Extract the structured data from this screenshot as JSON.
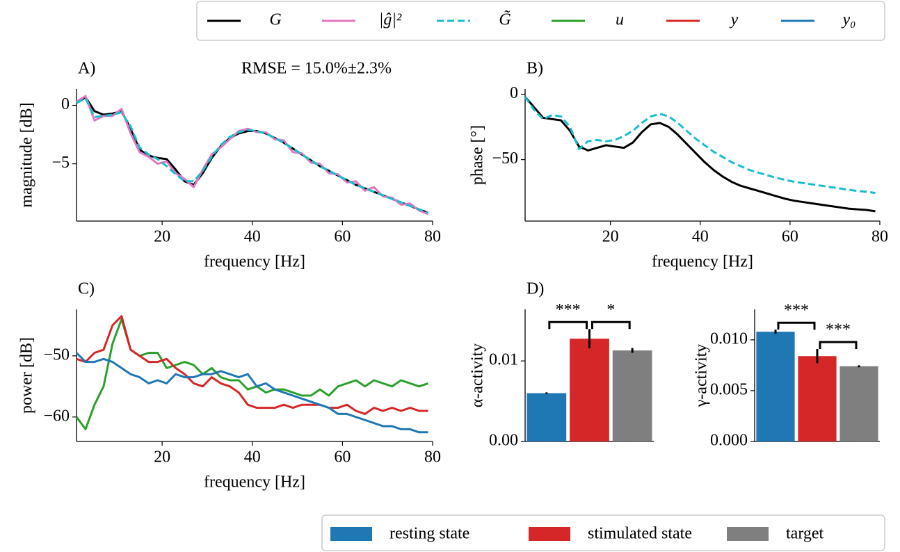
{
  "chart_data": [
    {
      "type": "line",
      "panel_label": "A)",
      "annotation": "RMSE = 15.0%±2.3%",
      "xlabel": "frequency [Hz]",
      "ylabel": "magnitude [dB]",
      "x": [
        1,
        3,
        5,
        7,
        9,
        11,
        13,
        15,
        17,
        19,
        21,
        23,
        25,
        27,
        29,
        31,
        33,
        35,
        37,
        39,
        41,
        43,
        45,
        47,
        49,
        51,
        53,
        55,
        57,
        59,
        61,
        63,
        65,
        67,
        69,
        71,
        73,
        75,
        77,
        79
      ],
      "xlim": [
        1,
        80
      ],
      "ylim": [
        -9.9,
        1.4
      ],
      "xticks": [
        20,
        40,
        60,
        80
      ],
      "yticks": [
        0,
        {
          "value": -5,
          "label": "−5"
        }
      ],
      "series": [
        {
          "name": "G",
          "color": "#000000",
          "dash": "solid",
          "values": [
            0.2,
            0.7,
            -0.5,
            -0.8,
            -0.7,
            -0.5,
            -2,
            -3.8,
            -4.3,
            -4.5,
            -4.6,
            -5.5,
            -6.5,
            -6.8,
            -5.8,
            -4.5,
            -3.5,
            -2.8,
            -2.4,
            -2.2,
            -2.2,
            -2.4,
            -2.8,
            -3.2,
            -3.7,
            -4.2,
            -4.7,
            -5.2,
            -5.6,
            -6.0,
            -6.4,
            -6.8,
            -7.1,
            -7.4,
            -7.7,
            -8.0,
            -8.3,
            -8.6,
            -8.9,
            -9.2
          ]
        },
        {
          "name": "|ĝ|²",
          "color": "#e377c2",
          "dash": "solid",
          "values": [
            0.3,
            0.8,
            -1.3,
            -0.9,
            -0.9,
            -0.3,
            -2.4,
            -4.0,
            -4.4,
            -5.0,
            -4.8,
            -5.8,
            -6.3,
            -7.0,
            -5.5,
            -4.2,
            -3.6,
            -2.9,
            -2.2,
            -2.0,
            -2.3,
            -2.3,
            -2.9,
            -3.0,
            -4.0,
            -4.1,
            -4.9,
            -5.0,
            -5.8,
            -5.9,
            -6.6,
            -6.5,
            -7.3,
            -7.0,
            -7.8,
            -7.9,
            -8.5,
            -8.4,
            -9.0,
            -9.3
          ]
        },
        {
          "name": "G̃",
          "color": "#17becf",
          "dash": "dashed",
          "values": [
            0.2,
            0.6,
            -1.0,
            -0.9,
            -0.8,
            -0.6,
            -1.8,
            -3.6,
            -4.2,
            -4.6,
            -5.2,
            -5.9,
            -6.5,
            -6.5,
            -5.6,
            -4.4,
            -3.4,
            -2.7,
            -2.3,
            -2.1,
            -2.2,
            -2.4,
            -2.8,
            -3.2,
            -3.7,
            -4.2,
            -4.7,
            -5.2,
            -5.6,
            -6.0,
            -6.4,
            -6.8,
            -7.1,
            -7.4,
            -7.7,
            -8.0,
            -8.3,
            -8.6,
            -8.9,
            -9.2
          ]
        }
      ]
    },
    {
      "type": "line",
      "panel_label": "B)",
      "xlabel": "frequency [Hz]",
      "ylabel": "phase [°]",
      "x": [
        1,
        3,
        5,
        7,
        9,
        11,
        13,
        15,
        17,
        19,
        21,
        23,
        25,
        27,
        29,
        31,
        33,
        35,
        37,
        39,
        41,
        43,
        45,
        47,
        49,
        51,
        53,
        55,
        57,
        59,
        61,
        63,
        65,
        67,
        69,
        71,
        73,
        75,
        77,
        79
      ],
      "xlim": [
        1,
        80
      ],
      "ylim": [
        -97,
        4
      ],
      "xticks": [
        20,
        40,
        60,
        80
      ],
      "yticks": [
        0,
        {
          "value": -50,
          "label": "−50"
        }
      ],
      "series": [
        {
          "name": "G",
          "color": "#000000",
          "dash": "solid",
          "values": [
            -2,
            -10,
            -18,
            -19,
            -20,
            -28,
            -40,
            -43,
            -41,
            -39,
            -40,
            -41,
            -37,
            -29,
            -23,
            -22,
            -25,
            -31,
            -38,
            -45,
            -52,
            -58,
            -63,
            -67,
            -70,
            -72,
            -74,
            -76,
            -78,
            -80,
            -81.5,
            -82.5,
            -83.5,
            -84.5,
            -85.5,
            -86.5,
            -87.5,
            -88,
            -88.5,
            -89.5
          ]
        },
        {
          "name": "G̃",
          "color": "#17becf",
          "dash": "dashed",
          "values": [
            -2,
            -12,
            -19,
            -16,
            -17,
            -25,
            -42,
            -36,
            -35,
            -36,
            -35,
            -32,
            -28,
            -22,
            -17,
            -15,
            -17,
            -22,
            -28,
            -34,
            -39,
            -44,
            -48,
            -52,
            -55,
            -58,
            -60,
            -62,
            -64,
            -65.5,
            -67,
            -68,
            -69,
            -70,
            -71,
            -72,
            -73,
            -74,
            -74.5,
            -75.5
          ]
        }
      ]
    },
    {
      "type": "line",
      "panel_label": "C)",
      "xlabel": "frequency [Hz]",
      "ylabel": "power [dB]",
      "x": [
        1,
        3,
        5,
        7,
        9,
        11,
        13,
        15,
        17,
        19,
        21,
        23,
        25,
        27,
        29,
        31,
        33,
        35,
        37,
        39,
        41,
        43,
        45,
        47,
        49,
        51,
        53,
        55,
        57,
        59,
        61,
        63,
        65,
        67,
        69,
        71,
        73,
        75,
        77,
        79
      ],
      "xlim": [
        1,
        80
      ],
      "ylim": [
        -64,
        -42.4
      ],
      "xticks": [
        20,
        40,
        60,
        80
      ],
      "yticks": [
        {
          "value": -50,
          "label": "−50"
        },
        {
          "value": -60,
          "label": "−60"
        }
      ],
      "series": [
        {
          "name": "u",
          "color": "#2ca02c",
          "dash": "solid",
          "values": [
            -60,
            -62,
            -58,
            -55,
            -48,
            -44,
            -49,
            -50,
            -49.5,
            -49.5,
            -52,
            -51.5,
            -51,
            -51.5,
            -53,
            -52,
            -53.5,
            -54,
            -54,
            -55.5,
            -55,
            -56,
            -55.5,
            -55.5,
            -56,
            -56.5,
            -56.5,
            -55.5,
            -56.5,
            -55,
            -54.5,
            -54,
            -55,
            -54,
            -54.5,
            -55,
            -54,
            -54.5,
            -55,
            -54.5
          ]
        },
        {
          "name": "y",
          "color": "#d62728",
          "dash": "solid",
          "values": [
            -50.5,
            -51,
            -49.5,
            -49,
            -45,
            -43.5,
            -49,
            -50,
            -51,
            -51,
            -50.5,
            -52,
            -53,
            -54.5,
            -55,
            -53.5,
            -54.5,
            -55,
            -56,
            -58,
            -58.5,
            -58.5,
            -58.5,
            -58,
            -58.5,
            -58,
            -58,
            -58,
            -58.5,
            -58.5,
            -58,
            -59,
            -59.5,
            -58.5,
            -59,
            -58.5,
            -59,
            -58.5,
            -59,
            -59
          ]
        },
        {
          "name": "y₀",
          "color": "#1f77b4",
          "dash": "solid",
          "values": [
            -49.5,
            -51,
            -51,
            -50.5,
            -51,
            -52,
            -53,
            -53.5,
            -54.5,
            -54,
            -54.5,
            -53,
            -53.5,
            -53.5,
            -53,
            -53,
            -52.5,
            -53,
            -53.5,
            -53,
            -55,
            -54.5,
            -55.5,
            -56,
            -56.5,
            -57,
            -57.5,
            -58,
            -58.5,
            -59.5,
            -59.5,
            -60,
            -60.5,
            -61,
            -61.5,
            -61.5,
            -62,
            -62,
            -62.5,
            -62.5
          ]
        }
      ]
    },
    {
      "type": "bar",
      "panel_label": "D)",
      "ylabel": "α-activity",
      "categories": [
        "resting state",
        "stimulated state",
        "target"
      ],
      "colors": [
        "#1f77b4",
        "#d62728",
        "#7f7f7f"
      ],
      "values": [
        0.006,
        0.01276,
        0.0113
      ],
      "errors": [
        0.0001,
        0.0012,
        0.0003
      ],
      "ylim": [
        0,
        0.0164
      ],
      "yticks": [
        {
          "value": 0,
          "label": "0.00"
        },
        0.01
      ],
      "significance": [
        {
          "between": [
            0,
            1
          ],
          "label": "***"
        },
        {
          "between": [
            1,
            2
          ],
          "label": "*"
        }
      ]
    },
    {
      "type": "bar",
      "ylabel": "γ-activity",
      "categories": [
        "resting state",
        "stimulated state",
        "target"
      ],
      "colors": [
        "#1f77b4",
        "#d62728",
        "#7f7f7f"
      ],
      "values": [
        0.0108,
        0.0084,
        0.0074
      ],
      "errors": [
        0.0002,
        0.0007,
        0.0001
      ],
      "ylim": [
        0,
        0.013
      ],
      "yticks": [
        {
          "value": 0,
          "label": "0.000"
        },
        0.005,
        {
          "value": 0.01,
          "label": "0.010"
        }
      ],
      "significance": [
        {
          "between": [
            0,
            1
          ],
          "label": "***"
        },
        {
          "between": [
            1,
            2
          ],
          "label": "***"
        }
      ]
    }
  ]
}
